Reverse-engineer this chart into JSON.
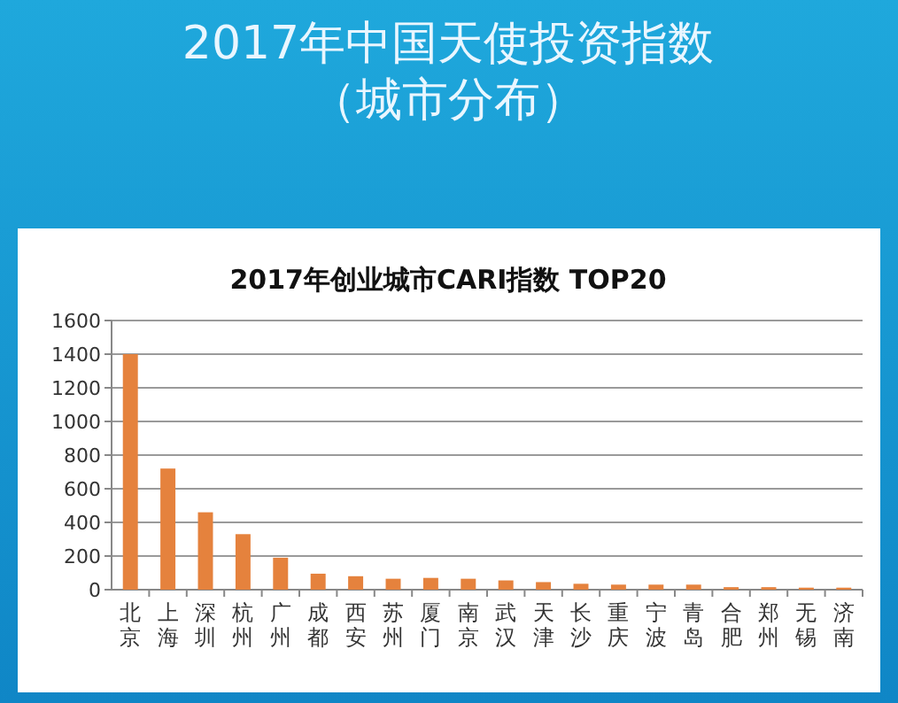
{
  "chart_data": {
    "type": "bar",
    "title": "2017年创业城市CARI指数  TOP20",
    "annotations": [
      "2017年中国天使投资指数",
      "（城市分布）"
    ],
    "categories": [
      "北京",
      "上海",
      "深圳",
      "杭州",
      "广州",
      "成都",
      "西安",
      "苏州",
      "厦门",
      "南京",
      "武汉",
      "天津",
      "长沙",
      "重庆",
      "宁波",
      "青岛",
      "合肥",
      "郑州",
      "无锡",
      "济南"
    ],
    "values": [
      1400,
      720,
      460,
      330,
      190,
      95,
      80,
      65,
      70,
      65,
      55,
      45,
      35,
      30,
      30,
      30,
      15,
      15,
      12,
      12
    ],
    "color": "#e5823d",
    "ylim": [
      0,
      1600
    ],
    "yticks": [
      0,
      200,
      400,
      600,
      800,
      1000,
      1200,
      1400,
      1600
    ],
    "grid": "y"
  }
}
